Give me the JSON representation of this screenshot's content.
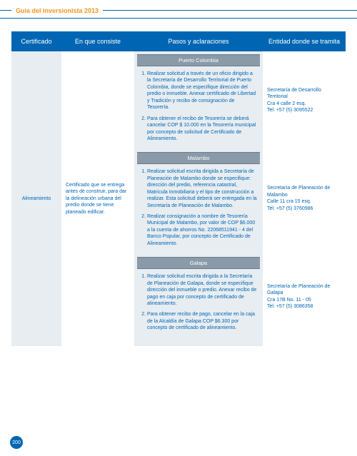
{
  "header": {
    "title": "Guía del inversionista 2013"
  },
  "columns": {
    "c1": "Certificado",
    "c2": "En que consiste",
    "c3": "Pasos y aclaraciones",
    "c4": "Entidad donde se tramita"
  },
  "row": {
    "cert": "Alineamiento",
    "desc": "Certificado que se entrega antes de construir, para dar la delineación urbana del predio donde se tiene planeado edificar.",
    "sections": {
      "s1": {
        "title": "Puerto Colombia",
        "p1": "Realizar solicitud a través de un oficio dirigido a la Secretaría de Desarrollo Territorial de Puerto Colombia, donde se especifique dirección del predio o inmueble. Anexar certificado de Libertad y Tradición y recibo de consignación de Tesorería.",
        "p2": "Para obtener el recibo de Tesorería se deberá cancelar COP $ 10.000 en la Tesorería municipal por concepto de solicitud de Certificado de Alineamiento.",
        "entity": "Secretaría de Desarrollo Territorial\nCra 4 calle 2 esq.\nTel: +57 (5) 3095522"
      },
      "s2": {
        "title": "Malambo",
        "p1": "Realizar solicitud escrita dirigida a Secretaría de Planeación de Malambo donde se especifique: dirección del predio, referencia catastral, Matrícula Inmobiliaria y el tipo de construcción a realizar. Esta solicitud deberá ser entregada en la Secretaría de Planeación de Malambo.",
        "p2": "Realizar consignación a nombre de Tesorería Municipal de Malambo, por valor de COP $6.000 a la cuenta de ahorros No. 22068511941 - 4 del Banco Popular, por concepto de Certificado de Alineamiento.",
        "entity": "Secretaría de Planeación de Malambo\nCalle 11 cra 15 esq.\nTel: +57 (5) 3760986"
      },
      "s3": {
        "title": "Galapa",
        "p1": "Realizar solicitud escrita dirigida a la Secretaría de Planeación de Galapa, donde se especifique dirección del inmueble o predio. Anexar recibo de pago en caja por concepto de certificado de alineamiento.",
        "p2": "Para obtener recibo de pago, cancelar en la caja de la Alcaldía de Galapa COP $6.300 por concepto de certificado de alineamiento.",
        "entity": "Secretaría de Planeación de Galapa\nCra 17B No. 11 - 05\nTel: +57 (5) 3086358"
      }
    }
  },
  "page": "200"
}
